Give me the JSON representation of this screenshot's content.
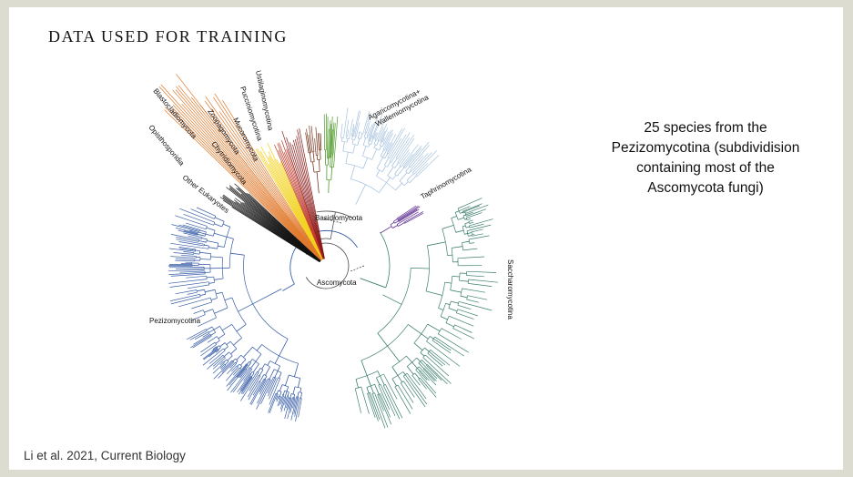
{
  "slide": {
    "title": "DATA USED FOR TRAINING",
    "description": "25 species from the Pezizomycotina (subdividision containing most of the Ascomycota fungi)",
    "citation": "Li et al. 2021, Current Biology"
  },
  "tree": {
    "clades": [
      {
        "key": "opisthosporidia",
        "label": "Opisthosporidia",
        "color": "#e0782a"
      },
      {
        "key": "blastocladiomycota",
        "label": "Blastocladiomycota",
        "color": "#e0782a"
      },
      {
        "key": "other_eukaryotes",
        "label": "Other Eukaryotes",
        "color": "#111111"
      },
      {
        "key": "chytridiomycota",
        "label": "Chytridiomycota",
        "color": "#f2d21a"
      },
      {
        "key": "zoopagomycota",
        "label": "Zoopagomycota",
        "color": "#c0392b"
      },
      {
        "key": "mucoromycota",
        "label": "Mucoromycota",
        "color": "#8b1a1a"
      },
      {
        "key": "pucciniomycotina",
        "label": "Pucciniomycotina",
        "color": "#7a3a22"
      },
      {
        "key": "ustilaginomycotina",
        "label": "Ustilaginomycotina",
        "color": "#4f9a2a"
      },
      {
        "key": "agaricomycotina",
        "label": "Agaricomycotina+ Wallemiomycotina",
        "color": "#a9c4df"
      },
      {
        "key": "taphrinomycotina",
        "label": "Taphrinomycotina",
        "color": "#5b2c8e"
      },
      {
        "key": "saccharomycotina",
        "label": "Saccharomycotina",
        "color": "#3d7f6e"
      },
      {
        "key": "pezizomycotina",
        "label": "Pezizomycotina",
        "color": "#3a5fa8"
      }
    ],
    "basidiomycota_label": "Basidiomycota",
    "ascomycota_label": "Ascomycota"
  }
}
